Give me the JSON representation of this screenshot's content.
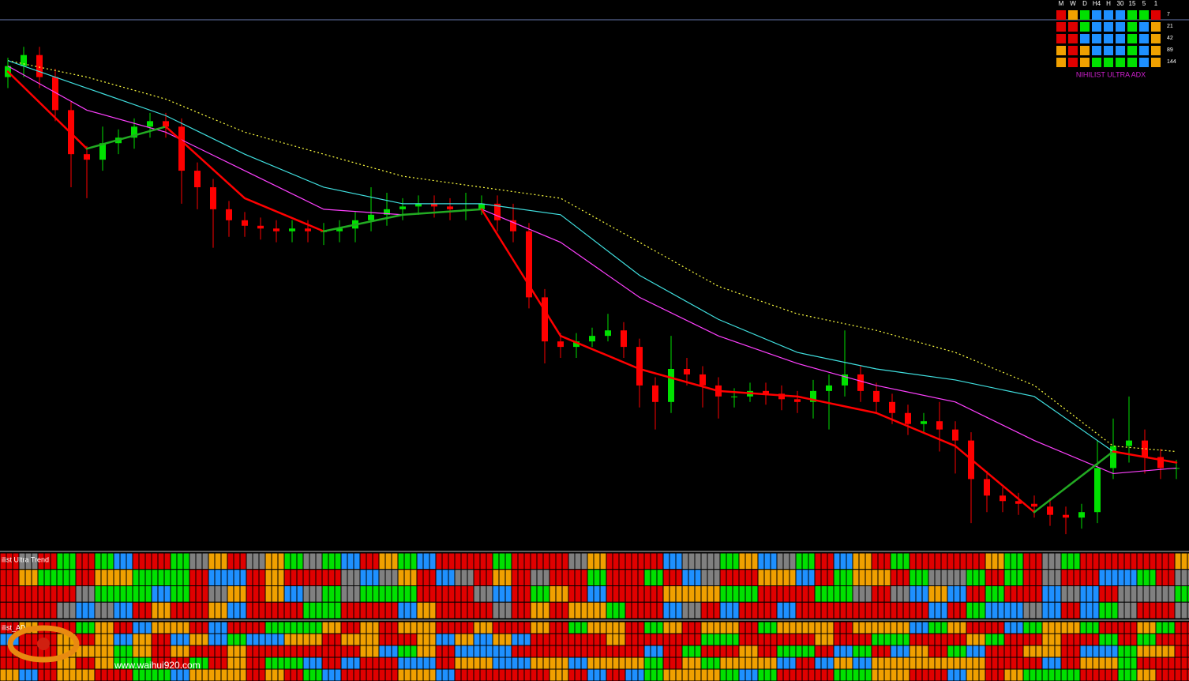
{
  "chart_data": {
    "type": "candlestick",
    "ylim": [
      0,
      100
    ],
    "open": [
      86,
      88,
      90,
      86,
      80,
      72,
      71,
      74,
      75,
      77,
      78,
      77,
      69,
      66,
      62,
      60,
      59,
      58.5,
      58,
      58.5,
      58,
      58,
      58.5,
      60,
      61,
      62,
      62.5,
      63,
      62.5,
      62,
      62,
      63,
      60,
      58,
      46,
      38,
      37,
      38,
      39,
      40,
      37,
      30,
      27,
      33,
      32,
      30,
      28,
      28,
      29,
      28.5,
      27.5,
      27,
      29,
      30,
      32,
      29,
      27,
      25,
      23,
      23.5,
      22,
      20,
      13,
      10,
      9,
      8.5,
      8,
      6.5,
      6,
      7,
      15,
      19,
      20,
      17,
      15
    ],
    "high": [
      89.5,
      91.5,
      91.5,
      87.5,
      81.5,
      73.5,
      77,
      76.5,
      78.5,
      79.5,
      79.5,
      78.5,
      70.5,
      67.5,
      63.5,
      61.5,
      60.5,
      60,
      60,
      60,
      59.5,
      60,
      61.5,
      66,
      65,
      64,
      64.5,
      64.5,
      64,
      65,
      64.5,
      64.5,
      63,
      59.5,
      47.5,
      39.5,
      39.5,
      40.5,
      43,
      41.5,
      38.5,
      31.5,
      39,
      35,
      33.5,
      31.5,
      29.5,
      30.5,
      30.5,
      30,
      29,
      31,
      32,
      40,
      33.5,
      30.5,
      28.5,
      26.5,
      25,
      27,
      23.5,
      21.5,
      14.5,
      11.5,
      10.5,
      10,
      9.5,
      8,
      8.5,
      20,
      24,
      28,
      22,
      18.5,
      16.5
    ],
    "low": [
      84,
      86,
      84,
      78,
      66,
      64,
      69,
      72,
      73,
      75,
      75,
      63,
      62,
      55,
      57,
      57,
      56.5,
      56,
      56,
      56,
      55.5,
      56,
      56,
      58,
      59,
      60,
      61,
      60.5,
      60,
      60,
      61,
      58,
      56,
      44,
      34,
      35,
      35,
      37,
      38,
      35,
      26,
      22,
      25,
      30,
      26,
      24,
      26,
      27,
      26.5,
      25.5,
      25,
      24,
      22,
      28,
      27,
      25,
      23,
      21,
      21.5,
      18,
      14,
      5,
      7,
      7,
      6.5,
      6,
      4.5,
      3,
      4,
      5,
      13,
      16,
      14,
      13,
      13
    ],
    "close": [
      88,
      90,
      86,
      80,
      72,
      71,
      74,
      75,
      77,
      78,
      77,
      69,
      66,
      62,
      60,
      59,
      58.5,
      58,
      58.5,
      58,
      58,
      58.5,
      60,
      61,
      62,
      62.5,
      63,
      62.5,
      62,
      62,
      63,
      60,
      58,
      46,
      38,
      37,
      38,
      39,
      40,
      37,
      30,
      27,
      33,
      32,
      30,
      28,
      28,
      29,
      28.5,
      27.5,
      27,
      29,
      30,
      32,
      29,
      27,
      25,
      23,
      23.5,
      22,
      20,
      13,
      10,
      9,
      8.5,
      8,
      6.5,
      6,
      7,
      15,
      19,
      20,
      17,
      15,
      15
    ],
    "up_color": "#00e000",
    "down_color": "#ff0000",
    "ma_index": [
      0,
      5,
      10,
      15,
      20,
      25,
      30,
      35,
      40,
      45,
      50,
      55,
      60,
      65,
      70,
      74
    ],
    "series": [
      {
        "color": "#ffff40",
        "dashed": true,
        "values": [
          89,
          86,
          82,
          76,
          72,
          68,
          66,
          64,
          56,
          48,
          43,
          40,
          36,
          30,
          19,
          18
        ]
      },
      {
        "color": "#40e0e0",
        "values": [
          89,
          84,
          79,
          72,
          66,
          63,
          63,
          61,
          50,
          42,
          36,
          33,
          31,
          28,
          18,
          16
        ]
      },
      {
        "color": "#ff40ff",
        "values": [
          88,
          80,
          76,
          69,
          62,
          61,
          62,
          56,
          46,
          39,
          34,
          30,
          27,
          20,
          14,
          15
        ]
      },
      {
        "color": "#ff0000",
        "up_color": "#22aa22",
        "width": 2.5,
        "values": [
          87,
          73,
          77,
          64,
          58,
          61,
          62,
          39,
          33,
          29,
          28,
          25,
          19,
          7,
          18,
          16
        ]
      }
    ]
  },
  "adx_matrix": {
    "title": "NIHILIST ULTRA ADX",
    "columns": [
      "M",
      "W",
      "D",
      "H4",
      "H",
      "30",
      "15",
      "5",
      "1"
    ],
    "rows": [
      "7",
      "21",
      "42",
      "89",
      "144"
    ],
    "cells": [
      [
        "#e00000",
        "#f0a000",
        "#00e000",
        "#1e90ff",
        "#1e90ff",
        "#1e90ff",
        "#00e000",
        "#00e000",
        "#e00000"
      ],
      [
        "#e00000",
        "#e00000",
        "#00e000",
        "#1e90ff",
        "#1e90ff",
        "#1e90ff",
        "#00e000",
        "#1e90ff",
        "#f0a000"
      ],
      [
        "#e00000",
        "#e00000",
        "#1e90ff",
        "#1e90ff",
        "#1e90ff",
        "#1e90ff",
        "#00e000",
        "#1e90ff",
        "#f0a000"
      ],
      [
        "#f0a000",
        "#e00000",
        "#f0a000",
        "#1e90ff",
        "#1e90ff",
        "#1e90ff",
        "#00e000",
        "#1e90ff",
        "#f0a000"
      ],
      [
        "#f0a000",
        "#e00000",
        "#f0a000",
        "#00e000",
        "#00e000",
        "#00e000",
        "#00e000",
        "#1e90ff",
        "#f0a000"
      ]
    ]
  },
  "panels": [
    {
      "label": "ilist Ultra Trend"
    },
    {
      "label": "ilist_AD"
    }
  ],
  "watermark": {
    "url": "www.waihui920.com"
  }
}
